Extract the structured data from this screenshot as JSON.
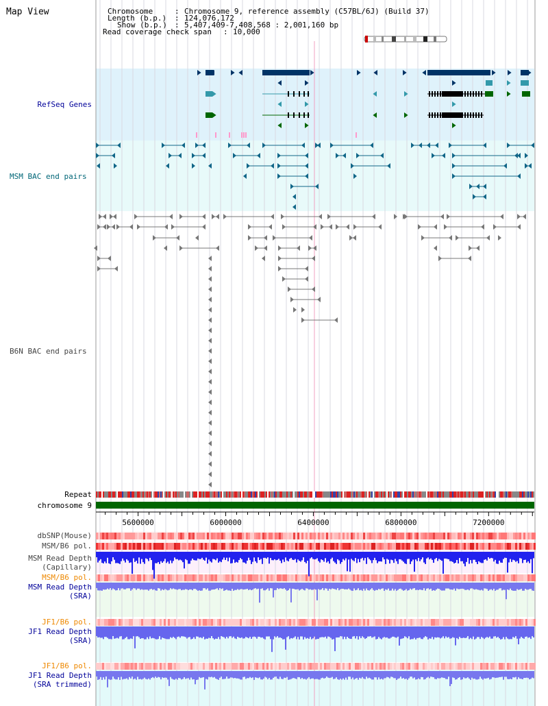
{
  "view_title": "Map View",
  "header": {
    "chromosome_label": "Chromosome",
    "chromosome_value": "Chromosome 9, reference assembly (C57BL/6J) (Build 37)",
    "length_label": "Length (b.p.)",
    "length_value": "124,076,172",
    "show_label": "Show (b.p.)",
    "show_value": "5,407,409-7,408,568 : 2,001,160 bp",
    "coverage_label": "Read coverage check span",
    "coverage_value": "10,000",
    "separator": ":"
  },
  "tracks": {
    "refseq": "RefSeq Genes",
    "msm_bac": "MSM BAC end pairs",
    "b6n_bac": "B6N BAC end pairs",
    "repeat": "Repeat",
    "chromosome": "chromosome 9",
    "dbsnp": "dbSNP(Mouse)",
    "msm_b6_pol_1": "MSM/B6 pol.",
    "msm_depth_cap_1": "MSM Read Depth",
    "msm_depth_cap_2": "(Capillary)",
    "msm_b6_pol_2": "MSM/B6 pol.",
    "msm_depth_sra_1": "MSM Read Depth",
    "msm_depth_sra_2": "(SRA)",
    "jf1_b6_pol_1": "JF1/B6 pol.",
    "jf1_depth_sra_1": "JF1 Read Depth",
    "jf1_depth_sra_2": "(SRA)",
    "jf1_b6_pol_2": "JF1/B6 pol.",
    "jf1_depth_trim_1": "JF1 Read Depth",
    "jf1_depth_trim_2": "(SRA trimmed)"
  },
  "axis": {
    "ticks": [
      "5600000",
      "6000000",
      "6400000",
      "6800000",
      "7200000"
    ],
    "tick_values": [
      5600000,
      6000000,
      6400000,
      6800000,
      7200000
    ],
    "range": [
      5407409,
      7408568
    ]
  },
  "colors": {
    "refseq_bg": "#dff2fb",
    "bac_bg": "#e8fafa",
    "depth_bg": "#fdf0fb",
    "sra_bg": "#eefaee",
    "jf_bg": "#e3fafa",
    "gene_dark": "#003366",
    "gene_teal": "#3399aa",
    "gene_green": "#006600",
    "msm_pair": "#116688",
    "b6n_pair": "#777777",
    "chromosome_bar": "#006600",
    "label_blue": "#000099",
    "label_orange": "#ee8800",
    "label_teal": "#006677",
    "label_gray": "#444444",
    "depth_blue": "#2222ee",
    "depth_lavender": "#7777ee"
  }
}
